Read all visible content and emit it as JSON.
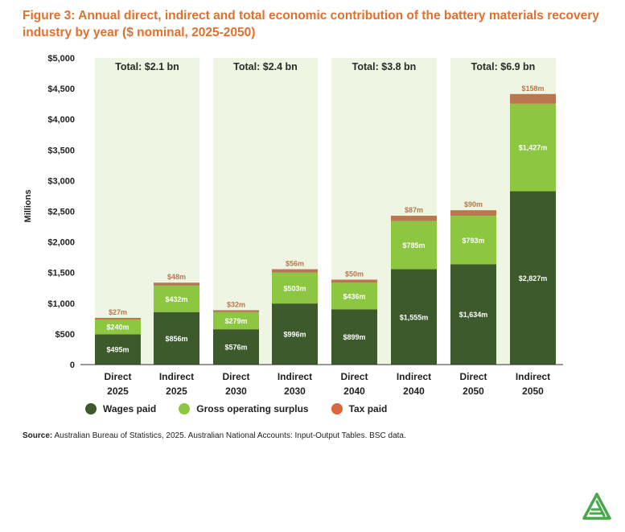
{
  "title": "Figure 3: Annual direct, indirect and total economic contribution of the battery materials recovery industry by year ($ nominal, 2025-2050)",
  "source_label": "Source:",
  "source_text": " Australian Bureau of Statistics, 2025. Australian National Accounts: Input-Output Tables. BSC data.",
  "colors": {
    "wages": "#3d5a2c",
    "gross_surplus": "#8dc641",
    "tax": "#b8774f",
    "group_band": "#eef5e2",
    "legend_tax": "#d9663c"
  },
  "chart_data": {
    "type": "bar",
    "stacked": true,
    "ylabel": "Millions",
    "ylim": [
      0,
      5000
    ],
    "yticks": [
      0,
      500,
      1000,
      1500,
      2000,
      2500,
      3000,
      3500,
      4000,
      4500,
      5000
    ],
    "ytick_labels": [
      "0",
      "$500",
      "$1,000",
      "$1,500",
      "$2,000",
      "$2,500",
      "$3,000",
      "$3,500",
      "$4,000",
      "$4,500",
      "$5,000"
    ],
    "categories": [
      [
        "Direct",
        "2025"
      ],
      [
        "Indirect",
        "2025"
      ],
      [
        "Direct",
        "2030"
      ],
      [
        "Indirect",
        "2030"
      ],
      [
        "Direct",
        "2040"
      ],
      [
        "Indirect",
        "2040"
      ],
      [
        "Direct",
        "2050"
      ],
      [
        "Indirect",
        "2050"
      ]
    ],
    "groups": [
      {
        "label": "Total: $2.1 bn"
      },
      {
        "label": "Total: $2.4 bn"
      },
      {
        "label": "Total: $3.8 bn"
      },
      {
        "label": "Total: $6.9 bn"
      }
    ],
    "series": [
      {
        "name": "Wages paid",
        "color_key": "wages",
        "values": [
          495,
          856,
          576,
          996,
          899,
          1555,
          1634,
          2827
        ],
        "labels": [
          "$495m",
          "$856m",
          "$576m",
          "$996m",
          "$899m",
          "$1,555m",
          "$1,634m",
          "$2,827m"
        ]
      },
      {
        "name": "Gross operating surplus",
        "color_key": "gross_surplus",
        "values": [
          240,
          432,
          279,
          503,
          436,
          785,
          793,
          1427
        ],
        "labels": [
          "$240m",
          "$432m",
          "$279m",
          "$503m",
          "$436m",
          "$785m",
          "$793m",
          "$1,427m"
        ]
      },
      {
        "name": "Tax paid",
        "color_key": "tax",
        "values": [
          27,
          48,
          32,
          56,
          50,
          87,
          90,
          158
        ],
        "labels": [
          "$27m",
          "$48m",
          "$32m",
          "$56m",
          "$50m",
          "$87m",
          "$90m",
          "$158m"
        ]
      }
    ],
    "legend_position": "bottom-left",
    "grid": false
  }
}
